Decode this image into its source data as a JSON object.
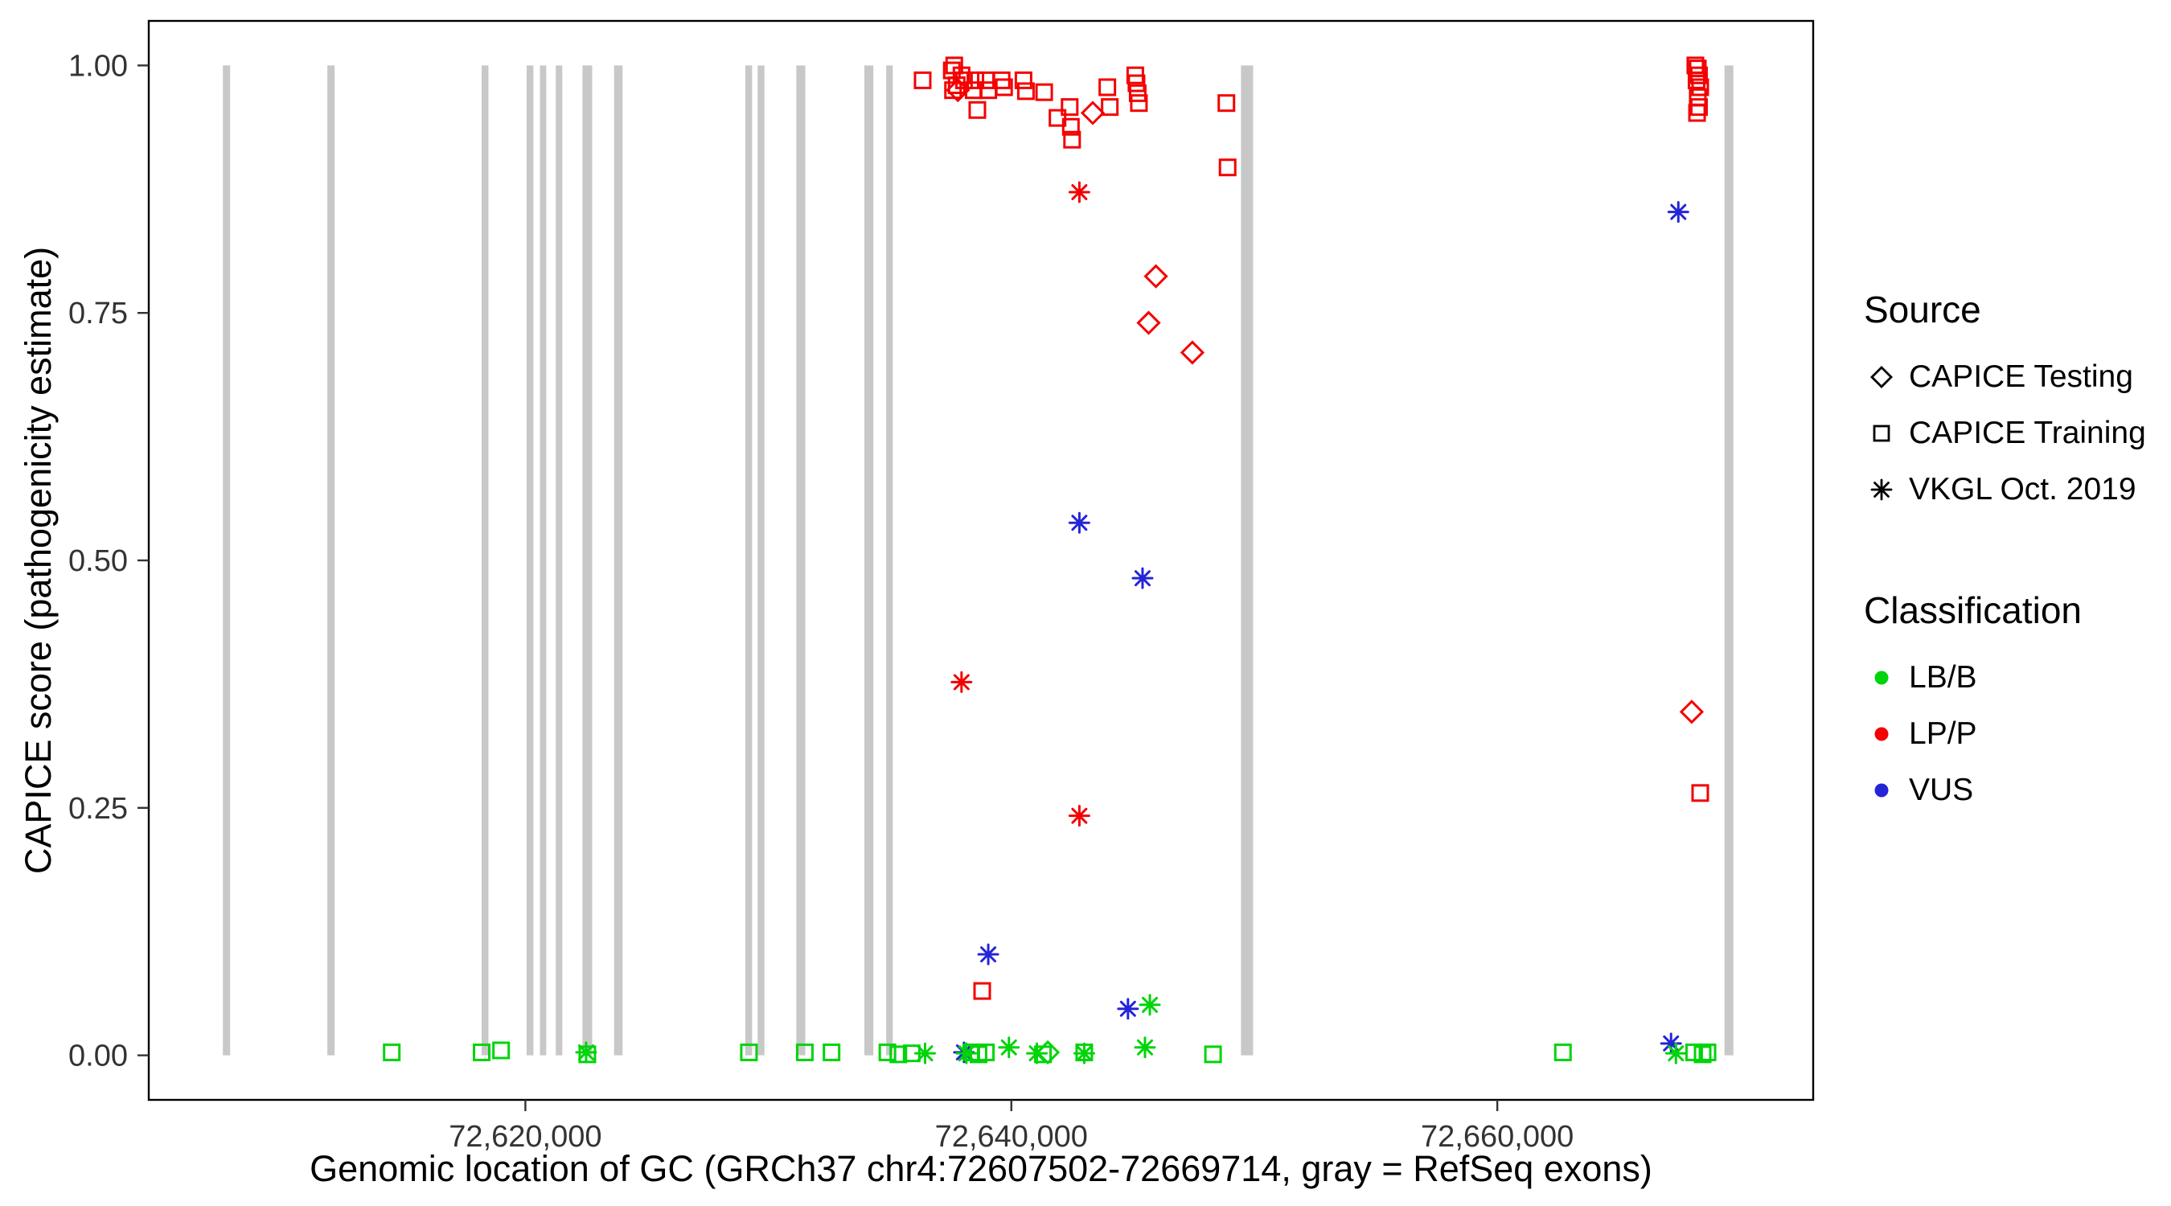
{
  "axes": {
    "x_title": "Genomic location of GC (GRCh37 chr4:72607502-72669714, gray = RefSeq exons)",
    "y_title": "CAPICE score (pathogenicity estimate)",
    "x_ticks": [
      {
        "value": 72620000,
        "label": "72,620,000"
      },
      {
        "value": 72640000,
        "label": "72,640,000"
      },
      {
        "value": 72660000,
        "label": "72,660,000"
      }
    ],
    "y_ticks": [
      {
        "value": 0.0,
        "label": "0.00"
      },
      {
        "value": 0.25,
        "label": "0.25"
      },
      {
        "value": 0.5,
        "label": "0.50"
      },
      {
        "value": 0.75,
        "label": "0.75"
      },
      {
        "value": 1.0,
        "label": "1.00"
      }
    ]
  },
  "legend": {
    "source_title": "Source",
    "source_items": [
      {
        "shape": "diamond",
        "label": "CAPICE Testing"
      },
      {
        "shape": "square",
        "label": "CAPICE Training"
      },
      {
        "shape": "asterisk",
        "label": "VKGL Oct. 2019"
      }
    ],
    "classification_title": "Classification",
    "classification_items": [
      {
        "color": "#00D40A",
        "label": "LB/B"
      },
      {
        "color": "#F40000",
        "label": "LP/P"
      },
      {
        "color": "#2424D8",
        "label": "VUS"
      }
    ]
  },
  "chart_data": {
    "type": "scatter",
    "title": "",
    "xlabel": "Genomic location of GC (GRCh37 chr4:72607502-72669714, gray = RefSeq exons)",
    "ylabel": "CAPICE score (pathogenicity estimate)",
    "xlim": [
      72604500,
      72673000
    ],
    "ylim": [
      -0.045,
      1.045
    ],
    "grid": false,
    "legend_position": "right",
    "exon_color": "#C8C8C8",
    "exon_y_range": [
      0.0,
      1.0
    ],
    "exons": [
      [
        72607550,
        72607850
      ],
      [
        72611850,
        72612150
      ],
      [
        72618200,
        72618480
      ],
      [
        72620050,
        72620330
      ],
      [
        72620600,
        72620860
      ],
      [
        72621250,
        72621520
      ],
      [
        72622350,
        72622750
      ],
      [
        72623650,
        72624000
      ],
      [
        72629050,
        72629330
      ],
      [
        72629560,
        72629840
      ],
      [
        72631150,
        72631520
      ],
      [
        72633950,
        72634320
      ],
      [
        72634850,
        72635120
      ],
      [
        72649450,
        72649950
      ],
      [
        72669350,
        72669714
      ]
    ],
    "shape_map": {
      "CAPICE Testing": "diamond",
      "CAPICE Training": "square",
      "VKGL Oct. 2019": "asterisk"
    },
    "color_map": {
      "LB/B": "#00D40A",
      "LP/P": "#F40000",
      "VUS": "#2424D8"
    },
    "series": [
      {
        "source": "CAPICE Training",
        "classification": "LP/P",
        "points": [
          [
            72636350,
            0.985
          ],
          [
            72637550,
            0.995
          ],
          [
            72637650,
            1.0
          ],
          [
            72637750,
            0.98
          ],
          [
            72637600,
            0.975
          ],
          [
            72637950,
            0.99
          ],
          [
            72638050,
            0.985
          ],
          [
            72638450,
            0.975
          ],
          [
            72638520,
            0.985
          ],
          [
            72638600,
            0.955
          ],
          [
            72638950,
            0.985
          ],
          [
            72639050,
            0.975
          ],
          [
            72639600,
            0.985
          ],
          [
            72639700,
            0.978
          ],
          [
            72640500,
            0.985
          ],
          [
            72640600,
            0.974
          ],
          [
            72641350,
            0.973
          ],
          [
            72641900,
            0.947
          ],
          [
            72642400,
            0.958
          ],
          [
            72642450,
            0.938
          ],
          [
            72642500,
            0.925
          ],
          [
            72643950,
            0.978
          ],
          [
            72644050,
            0.958
          ],
          [
            72645100,
            0.99
          ],
          [
            72645150,
            0.982
          ],
          [
            72645200,
            0.972
          ],
          [
            72645250,
            0.962
          ],
          [
            72648850,
            0.962
          ],
          [
            72648900,
            0.897
          ],
          [
            72638800,
            0.065
          ],
          [
            72668150,
            1.0
          ],
          [
            72668250,
            0.997
          ],
          [
            72668300,
            0.99
          ],
          [
            72668200,
            0.985
          ],
          [
            72668350,
            0.978
          ],
          [
            72668250,
            0.968
          ],
          [
            72668300,
            0.958
          ],
          [
            72668220,
            0.952
          ],
          [
            72668350,
            0.265
          ]
        ]
      },
      {
        "source": "CAPICE Testing",
        "classification": "LP/P",
        "points": [
          [
            72637800,
            0.975
          ],
          [
            72643350,
            0.952
          ],
          [
            72645950,
            0.787
          ],
          [
            72645650,
            0.74
          ],
          [
            72647450,
            0.71
          ],
          [
            72668000,
            0.347
          ]
        ]
      },
      {
        "source": "VKGL Oct. 2019",
        "classification": "LP/P",
        "points": [
          [
            72642800,
            0.872
          ],
          [
            72637950,
            0.377
          ],
          [
            72642800,
            0.242
          ]
        ]
      },
      {
        "source": "VKGL Oct. 2019",
        "classification": "VUS",
        "points": [
          [
            72642800,
            0.538
          ],
          [
            72645400,
            0.482
          ],
          [
            72667450,
            0.852
          ],
          [
            72639050,
            0.102
          ],
          [
            72644800,
            0.047
          ],
          [
            72667150,
            0.012
          ],
          [
            72638050,
            0.003
          ]
        ]
      },
      {
        "source": "VKGL Oct. 2019",
        "classification": "LB/B",
        "points": [
          [
            72622500,
            0.003
          ],
          [
            72636450,
            0.002
          ],
          [
            72638150,
            0.002
          ],
          [
            72639900,
            0.008
          ],
          [
            72641050,
            0.002
          ],
          [
            72643000,
            0.002
          ],
          [
            72645700,
            0.051
          ],
          [
            72645500,
            0.008
          ],
          [
            72667350,
            0.002
          ]
        ]
      },
      {
        "source": "CAPICE Training",
        "classification": "LB/B",
        "points": [
          [
            72614500,
            0.003
          ],
          [
            72618200,
            0.003
          ],
          [
            72619000,
            0.005
          ],
          [
            72622550,
            0.001
          ],
          [
            72629200,
            0.003
          ],
          [
            72631500,
            0.003
          ],
          [
            72632600,
            0.003
          ],
          [
            72634900,
            0.003
          ],
          [
            72635350,
            0.001
          ],
          [
            72635900,
            0.002
          ],
          [
            72638350,
            0.003
          ],
          [
            72638650,
            0.001
          ],
          [
            72638950,
            0.003
          ],
          [
            72641300,
            0.001
          ],
          [
            72643000,
            0.003
          ],
          [
            72648300,
            0.001
          ],
          [
            72662700,
            0.003
          ],
          [
            72668100,
            0.003
          ],
          [
            72668450,
            0.001
          ],
          [
            72668650,
            0.003
          ]
        ]
      },
      {
        "source": "CAPICE Testing",
        "classification": "LB/B",
        "points": [
          [
            72641500,
            0.003
          ]
        ]
      }
    ]
  }
}
